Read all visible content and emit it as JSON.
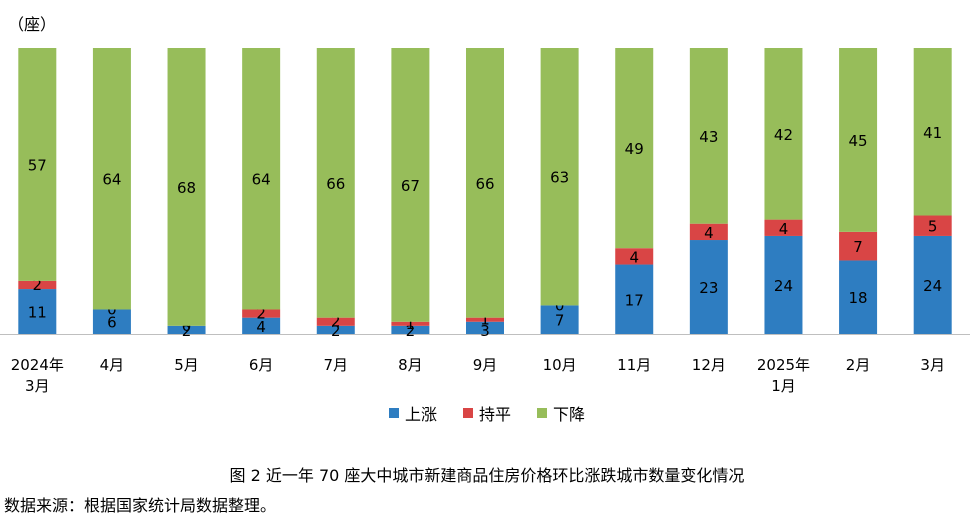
{
  "chart_data": {
    "type": "bar",
    "stacked": true,
    "unit_label": "（座）",
    "categories": [
      [
        "2024年",
        "3月"
      ],
      [
        "4月"
      ],
      [
        "5月"
      ],
      [
        "6月"
      ],
      [
        "7月"
      ],
      [
        "8月"
      ],
      [
        "9月"
      ],
      [
        "10月"
      ],
      [
        "11月"
      ],
      [
        "12月"
      ],
      [
        "2025年",
        "1月"
      ],
      [
        "2月"
      ],
      [
        "3月"
      ]
    ],
    "series": [
      {
        "name": "上涨",
        "color": "#2e7dc1",
        "values": [
          11,
          6,
          2,
          4,
          2,
          2,
          3,
          7,
          17,
          23,
          24,
          18,
          24
        ]
      },
      {
        "name": "持平",
        "color": "#d94545",
        "values": [
          2,
          0,
          0,
          2,
          2,
          1,
          1,
          0,
          4,
          4,
          4,
          7,
          5
        ]
      },
      {
        "name": "下降",
        "color": "#97bd5a",
        "values": [
          57,
          64,
          68,
          64,
          66,
          67,
          66,
          63,
          49,
          43,
          42,
          45,
          41
        ]
      }
    ],
    "ylim": [
      0,
      70
    ],
    "legend_position": "bottom",
    "grid": false
  },
  "caption": "图 2 近一年 70 座大中城市新建商品住房价格环比涨跌城市数量变化情况",
  "source": "数据来源：根据国家统计局数据整理。"
}
